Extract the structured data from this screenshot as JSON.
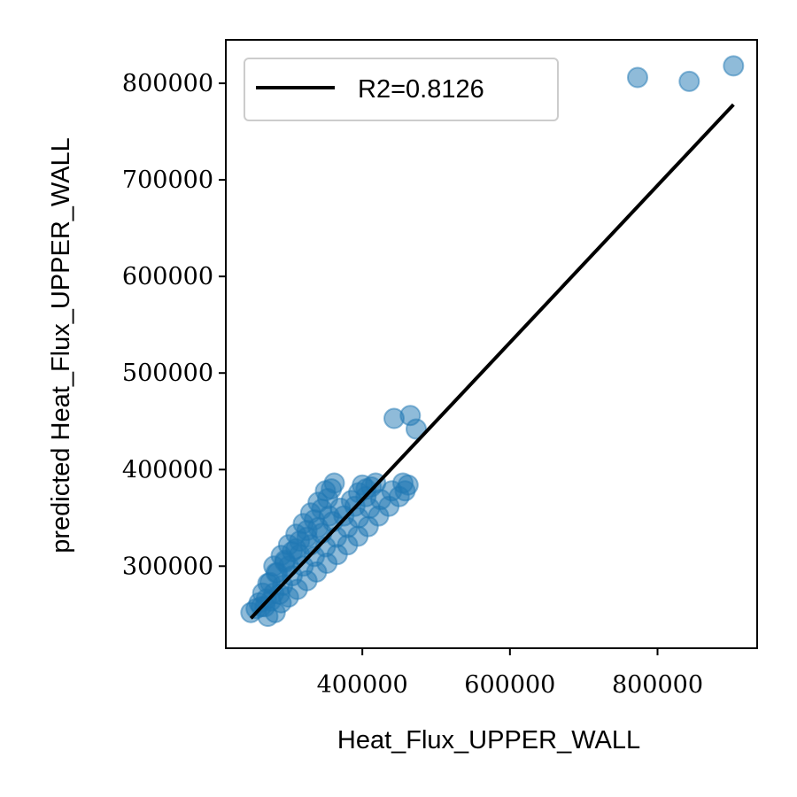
{
  "chart_data": {
    "type": "scatter",
    "title": "",
    "xlabel": "Heat_Flux_UPPER_WALL",
    "ylabel": "predicted Heat_Flux_UPPER_WALL",
    "xlim": [
      215000,
      935000
    ],
    "ylim": [
      215000,
      845000
    ],
    "xticks": [
      400000,
      600000,
      800000
    ],
    "xtick_labels": [
      "400000",
      "600000",
      "800000"
    ],
    "yticks": [
      300000,
      400000,
      500000,
      600000,
      700000,
      800000
    ],
    "ytick_labels": [
      "300000",
      "400000",
      "500000",
      "600000",
      "700000",
      "800000"
    ],
    "grid": false,
    "legend": {
      "position": "top-left",
      "entries": [
        "R2=0.8126"
      ]
    },
    "point_color": "#1f77b4",
    "line_color": "#000000",
    "series": [
      {
        "kind": "points",
        "points": [
          [
            249000,
            252000
          ],
          [
            256000,
            256000
          ],
          [
            263000,
            258000
          ],
          [
            272000,
            248000
          ],
          [
            282000,
            252000
          ],
          [
            290000,
            262000
          ],
          [
            300000,
            268000
          ],
          [
            312000,
            276000
          ],
          [
            325000,
            285000
          ],
          [
            338000,
            294000
          ],
          [
            352000,
            303000
          ],
          [
            366000,
            312000
          ],
          [
            380000,
            322000
          ],
          [
            394000,
            331000
          ],
          [
            408000,
            341000
          ],
          [
            422000,
            352000
          ],
          [
            436000,
            362000
          ],
          [
            450000,
            372000
          ],
          [
            458000,
            378000
          ],
          [
            462000,
            384000
          ],
          [
            455000,
            386000
          ],
          [
            440000,
            378000
          ],
          [
            425000,
            369000
          ],
          [
            410000,
            360000
          ],
          [
            395000,
            350000
          ],
          [
            380000,
            340000
          ],
          [
            365000,
            330000
          ],
          [
            350000,
            320000
          ],
          [
            335000,
            310000
          ],
          [
            320000,
            300000
          ],
          [
            305000,
            290000
          ],
          [
            292000,
            280000
          ],
          [
            280000,
            272000
          ],
          [
            270000,
            266000
          ],
          [
            260000,
            262000
          ],
          [
            265000,
            272000
          ],
          [
            275000,
            283000
          ],
          [
            285000,
            293000
          ],
          [
            295000,
            304000
          ],
          [
            305000,
            315000
          ],
          [
            315000,
            326000
          ],
          [
            325000,
            337000
          ],
          [
            335000,
            348000
          ],
          [
            345000,
            359000
          ],
          [
            353000,
            370000
          ],
          [
            358000,
            380000
          ],
          [
            362000,
            386000
          ],
          [
            350000,
            378000
          ],
          [
            340000,
            366000
          ],
          [
            330000,
            355000
          ],
          [
            320000,
            344000
          ],
          [
            310000,
            333000
          ],
          [
            300000,
            322000
          ],
          [
            290000,
            311000
          ],
          [
            280000,
            300000
          ],
          [
            300000,
            300000
          ],
          [
            315000,
            312000
          ],
          [
            330000,
            322000
          ],
          [
            345000,
            334000
          ],
          [
            360000,
            346000
          ],
          [
            375000,
            352000
          ],
          [
            390000,
            362000
          ],
          [
            405000,
            372000
          ],
          [
            412000,
            382000
          ],
          [
            418000,
            386000
          ],
          [
            400000,
            384000
          ],
          [
            405000,
            380000
          ],
          [
            395000,
            376000
          ],
          [
            385000,
            368000
          ],
          [
            370000,
            360000
          ],
          [
            355000,
            352000
          ],
          [
            340000,
            340000
          ],
          [
            325000,
            330000
          ],
          [
            310000,
            318000
          ],
          [
            295000,
            306000
          ],
          [
            283000,
            293000
          ],
          [
            272000,
            282000
          ],
          [
            268000,
            258000
          ],
          [
            276000,
            264000
          ],
          [
            288000,
            271000
          ],
          [
            443000,
            453000
          ],
          [
            465000,
            456000
          ],
          [
            473000,
            442000
          ],
          [
            773000,
            806000
          ],
          [
            843000,
            802000
          ],
          [
            903000,
            818000
          ]
        ]
      },
      {
        "kind": "line",
        "name": "R2=0.8126",
        "x": [
          249000,
          903000
        ],
        "y": [
          246000,
          778000
        ]
      }
    ]
  }
}
